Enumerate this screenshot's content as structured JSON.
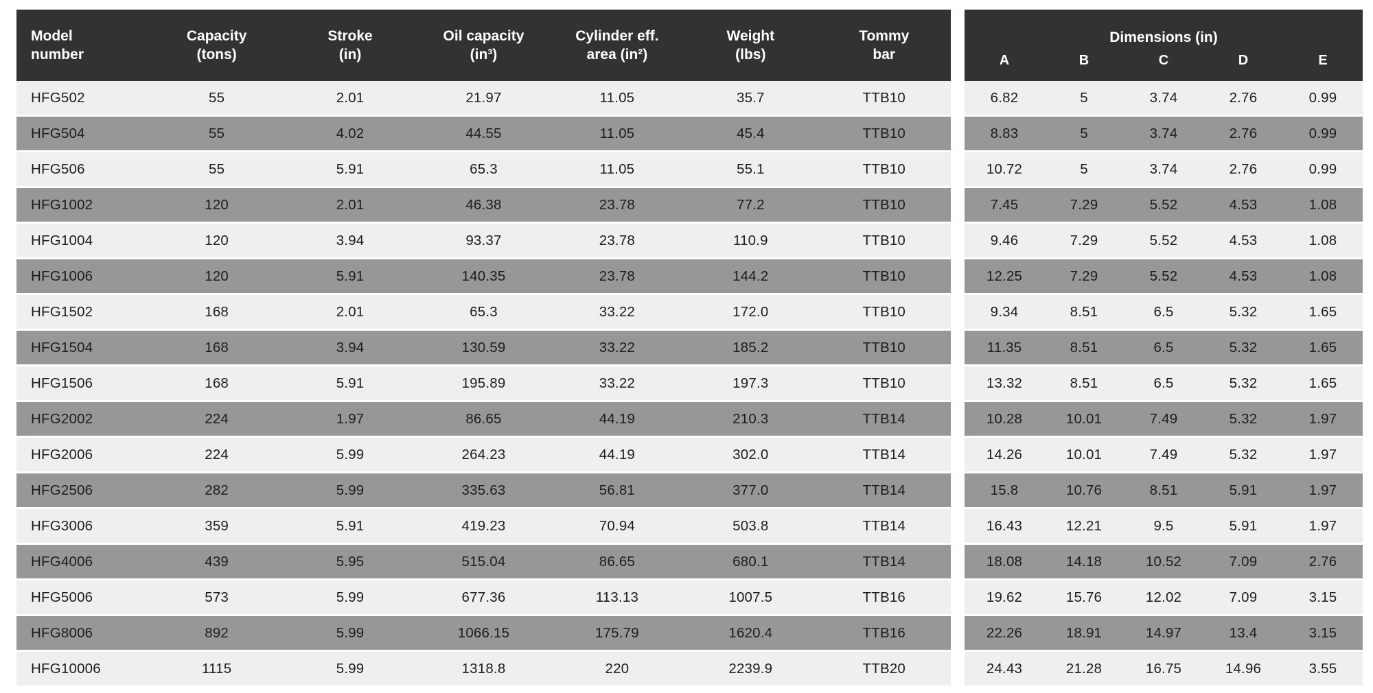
{
  "colors": {
    "header_bg": "#333132",
    "header_text": "#ffffff",
    "row_light": "#f0efef",
    "row_gray": "#999697",
    "body_text": "#1d1d1b"
  },
  "main_table": {
    "headers": [
      "Model\nnumber",
      "Capacity\n(tons)",
      "Stroke\n(in)",
      "Oil capacity\n(in³)",
      "Cylinder eff.\narea (in²)",
      "Weight\n(lbs)",
      "Tommy\nbar"
    ],
    "rows": [
      [
        "HFG502",
        "55",
        "2.01",
        "21.97",
        "11.05",
        "35.7",
        "TTB10"
      ],
      [
        "HFG504",
        "55",
        "4.02",
        "44.55",
        "11.05",
        "45.4",
        "TTB10"
      ],
      [
        "HFG506",
        "55",
        "5.91",
        "65.3",
        "11.05",
        "55.1",
        "TTB10"
      ],
      [
        "HFG1002",
        "120",
        "2.01",
        "46.38",
        "23.78",
        "77.2",
        "TTB10"
      ],
      [
        "HFG1004",
        "120",
        "3.94",
        "93.37",
        "23.78",
        "110.9",
        "TTB10"
      ],
      [
        "HFG1006",
        "120",
        "5.91",
        "140.35",
        "23.78",
        "144.2",
        "TTB10"
      ],
      [
        "HFG1502",
        "168",
        "2.01",
        "65.3",
        "33.22",
        "172.0",
        "TTB10"
      ],
      [
        "HFG1504",
        "168",
        "3.94",
        "130.59",
        "33.22",
        "185.2",
        "TTB10"
      ],
      [
        "HFG1506",
        "168",
        "5.91",
        "195.89",
        "33.22",
        "197.3",
        "TTB10"
      ],
      [
        "HFG2002",
        "224",
        "1.97",
        "86.65",
        "44.19",
        "210.3",
        "TTB14"
      ],
      [
        "HFG2006",
        "224",
        "5.99",
        "264.23",
        "44.19",
        "302.0",
        "TTB14"
      ],
      [
        "HFG2506",
        "282",
        "5.99",
        "335.63",
        "56.81",
        "377.0",
        "TTB14"
      ],
      [
        "HFG3006",
        "359",
        "5.91",
        "419.23",
        "70.94",
        "503.8",
        "TTB14"
      ],
      [
        "HFG4006",
        "439",
        "5.95",
        "515.04",
        "86.65",
        "680.1",
        "TTB14"
      ],
      [
        "HFG5006",
        "573",
        "5.99",
        "677.36",
        "113.13",
        "1007.5",
        "TTB16"
      ],
      [
        "HFG8006",
        "892",
        "5.99",
        "1066.15",
        "175.79",
        "1620.4",
        "TTB16"
      ],
      [
        "HFG10006",
        "1115",
        "5.99",
        "1318.8",
        "220",
        "2239.9",
        "TTB20"
      ]
    ]
  },
  "dimensions_table": {
    "title": "Dimensions (in)",
    "headers": [
      "A",
      "B",
      "C",
      "D",
      "E"
    ],
    "rows": [
      [
        "6.82",
        "5",
        "3.74",
        "2.76",
        "0.99"
      ],
      [
        "8.83",
        "5",
        "3.74",
        "2.76",
        "0.99"
      ],
      [
        "10.72",
        "5",
        "3.74",
        "2.76",
        "0.99"
      ],
      [
        "7.45",
        "7.29",
        "5.52",
        "4.53",
        "1.08"
      ],
      [
        "9.46",
        "7.29",
        "5.52",
        "4.53",
        "1.08"
      ],
      [
        "12.25",
        "7.29",
        "5.52",
        "4.53",
        "1.08"
      ],
      [
        "9.34",
        "8.51",
        "6.5",
        "5.32",
        "1.65"
      ],
      [
        "11.35",
        "8.51",
        "6.5",
        "5.32",
        "1.65"
      ],
      [
        "13.32",
        "8.51",
        "6.5",
        "5.32",
        "1.65"
      ],
      [
        "10.28",
        "10.01",
        "7.49",
        "5.32",
        "1.97"
      ],
      [
        "14.26",
        "10.01",
        "7.49",
        "5.32",
        "1.97"
      ],
      [
        "15.8",
        "10.76",
        "8.51",
        "5.91",
        "1.97"
      ],
      [
        "16.43",
        "12.21",
        "9.5",
        "5.91",
        "1.97"
      ],
      [
        "18.08",
        "14.18",
        "10.52",
        "7.09",
        "2.76"
      ],
      [
        "19.62",
        "15.76",
        "12.02",
        "7.09",
        "3.15"
      ],
      [
        "22.26",
        "18.91",
        "14.97",
        "13.4",
        "3.15"
      ],
      [
        "24.43",
        "21.28",
        "16.75",
        "14.96",
        "3.55"
      ]
    ]
  }
}
